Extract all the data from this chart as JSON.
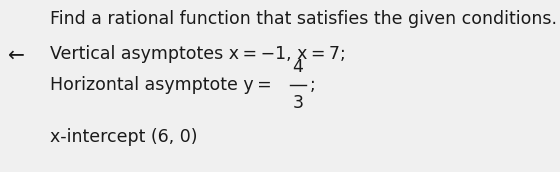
{
  "bg_color": "#f0f0f0",
  "text_color": "#1a1a1a",
  "arrow_char": "←",
  "line1": "Find a rational function that satisfies the given conditions.",
  "line2": "Vertical asymptotes x = −1, x = 7;",
  "line3_pre": "Horizontal asymptote y = ",
  "line3_num": "4",
  "line3_den": "3",
  "line3_post": ";",
  "line4": "x-intercept (6, 0)",
  "font_size": 12.5,
  "font_weight": "normal",
  "font_family": "DejaVu Sans"
}
